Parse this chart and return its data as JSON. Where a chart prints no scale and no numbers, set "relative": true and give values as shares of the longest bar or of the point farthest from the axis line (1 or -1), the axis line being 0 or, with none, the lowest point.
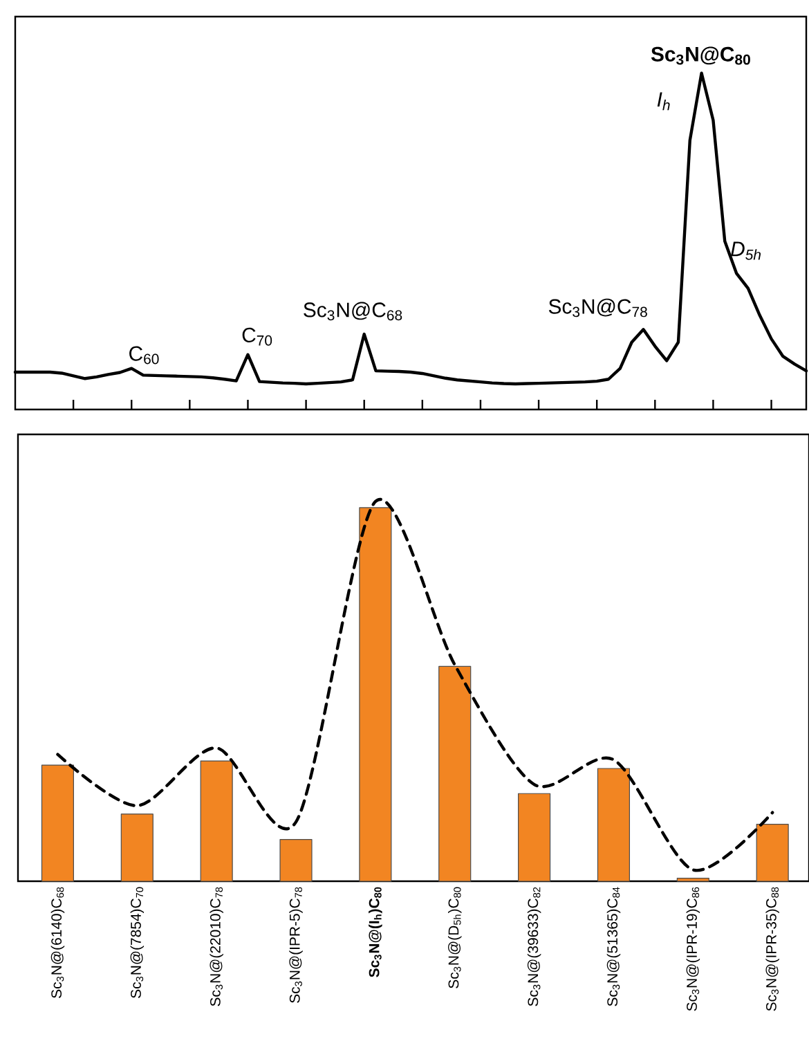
{
  "chart_data": [
    {
      "type": "line",
      "relative": true,
      "color": "#000000",
      "line_style": "solid",
      "categories": [
        null,
        null,
        null,
        null,
        null,
        null,
        null,
        null,
        null,
        null,
        null,
        null,
        null,
        null,
        null,
        null,
        null,
        null,
        null,
        null,
        null,
        null,
        null,
        null,
        null,
        null,
        null,
        null,
        null,
        null,
        null,
        null,
        null,
        null,
        null,
        null,
        null,
        null,
        null,
        null,
        null,
        null,
        null,
        null,
        null,
        null,
        null,
        null,
        null,
        null,
        null,
        null,
        null,
        null,
        null,
        null,
        null,
        null,
        null,
        null,
        null,
        null,
        null,
        null,
        null,
        null,
        null,
        null,
        null
      ],
      "values": [
        0.111,
        0.111,
        0.111,
        0.111,
        0.108,
        0.1,
        0.092,
        0.097,
        0.104,
        0.11,
        0.122,
        0.102,
        0.101,
        0.1,
        0.099,
        0.098,
        0.097,
        0.094,
        0.09,
        0.085,
        0.163,
        0.083,
        0.081,
        0.079,
        0.078,
        0.076,
        0.078,
        0.08,
        0.082,
        0.088,
        0.224,
        0.115,
        0.114,
        0.113,
        0.111,
        0.107,
        0.1,
        0.093,
        0.088,
        0.085,
        0.082,
        0.079,
        0.077,
        0.076,
        0.077,
        0.078,
        0.079,
        0.08,
        0.081,
        0.082,
        0.084,
        0.09,
        0.122,
        0.2,
        0.238,
        0.188,
        0.145,
        0.2,
        0.8,
        1.0,
        0.86,
        0.5,
        0.405,
        0.36,
        0.28,
        0.21,
        0.158,
        0.135,
        0.115
      ],
      "annotations": [
        "C$_{60}$",
        "C$_{70}$",
        "Sc$_{3}$N@C$_{68}$",
        "Sc$_{3}$N@C$_{78}$",
        "**Sc$_{3}$N@C$_{80}$**",
        "*I$_{h}$*",
        "*D$_{5h}$*"
      ]
    },
    {
      "type": "bar",
      "relative": true,
      "categories": [
        "Sc$_{3}$N@(6140)C$_{68}$",
        "Sc$_{3}$N@(7854)C$_{70}$",
        "Sc$_{3}$N@(22010)C$_{78}$",
        "Sc$_{3}$N@(IPR-5)C$_{78}$",
        "**Sc$_{3}$N@(I$_{h}$)C$_{80}$**",
        "Sc$_{3}$N@(D$_{5h}$)C$_{80}$",
        "Sc$_{3}$N@(39633)C$_{82}$",
        "Sc$_{3}$N@(51365)C$_{84}$",
        "Sc$_{3}$N@(IPR-19)C$_{86}$",
        "Sc$_{3}$N@(IPR-35)C$_{88}$"
      ],
      "series": [
        {
          "type": "bar",
          "color": "#f28522",
          "values": [
            0.306,
            0.177,
            0.317,
            0.11,
            0.984,
            0.566,
            0.231,
            0.297,
            0.008,
            0.15
          ]
        },
        {
          "type": "line",
          "color": "#000000",
          "line_style": "dashed",
          "values": [
            0.334,
            0.199,
            0.351,
            0.156,
            1.0,
            0.57,
            0.255,
            0.32,
            0.03,
            0.181
          ]
        }
      ]
    }
  ]
}
